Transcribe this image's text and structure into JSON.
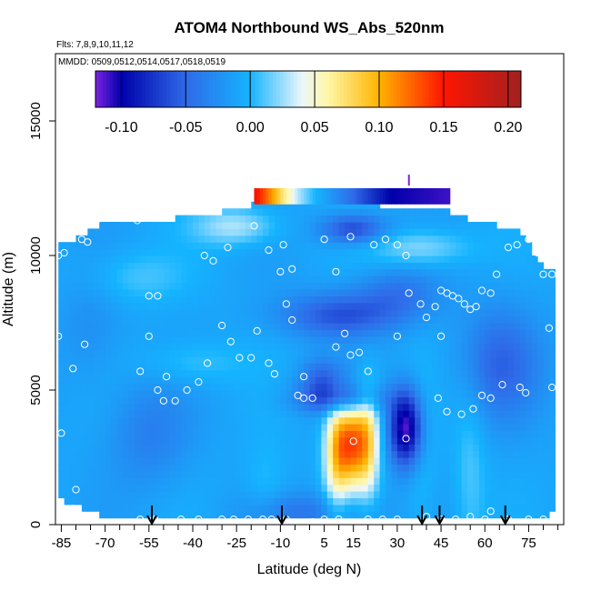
{
  "chart_data": {
    "type": "heatmap",
    "title": "ATOM4 Northbound WS_Abs_520nm",
    "flights_note": "Flts: 7,8,9,10,11,12",
    "dates_note": "MMDD: 0509,0512,0514,0517,0518,0519",
    "xlabel": "Latitude (deg N)",
    "ylabel": "Altitude (m)",
    "xlim": [
      -87,
      87
    ],
    "ylim": [
      0,
      17500
    ],
    "x_ticks": [
      -85,
      -70,
      -55,
      -40,
      -25,
      -10,
      5,
      15,
      30,
      45,
      60,
      75
    ],
    "y_ticks": [
      0,
      5000,
      10000,
      15000
    ],
    "colorbar": {
      "range": [
        -0.12,
        0.21
      ],
      "ticks": [
        -0.1,
        -0.05,
        0.0,
        0.05,
        0.1,
        0.15,
        0.2
      ],
      "tick_labels": [
        "-0.10",
        "-0.05",
        "0.00",
        "0.05",
        "0.10",
        "0.15",
        "0.20"
      ],
      "stops": [
        {
          "v": -0.12,
          "c": "#7b22e3"
        },
        {
          "v": -0.1,
          "c": "#0000aa"
        },
        {
          "v": -0.05,
          "c": "#2f6ae8"
        },
        {
          "v": 0.0,
          "c": "#15b4ff"
        },
        {
          "v": 0.04,
          "c": "#eaf6fb"
        },
        {
          "v": 0.06,
          "c": "#fff7a8"
        },
        {
          "v": 0.1,
          "c": "#ffb400"
        },
        {
          "v": 0.15,
          "c": "#ff1500"
        },
        {
          "v": 0.21,
          "c": "#a02020"
        }
      ]
    },
    "field": {
      "base_value": -0.01,
      "features": [
        {
          "lat": 14,
          "alt": 3000,
          "slat": 4.5,
          "salt": 1100,
          "v": 0.13
        },
        {
          "lat": 9,
          "alt": 2400,
          "slat": 3,
          "salt": 1600,
          "v": 0.05
        },
        {
          "lat": 20,
          "alt": 3200,
          "slat": 3,
          "salt": 1500,
          "v": 0.06
        },
        {
          "lat": 33,
          "alt": 3600,
          "slat": 4,
          "salt": 1000,
          "v": -0.11
        },
        {
          "lat": 10,
          "alt": 4700,
          "slat": 10,
          "salt": 400,
          "v": -0.06
        },
        {
          "lat": 10,
          "alt": 7800,
          "slat": 14,
          "salt": 600,
          "v": -0.05
        },
        {
          "lat": 5,
          "alt": 5500,
          "slat": 6,
          "salt": 500,
          "v": -0.04
        },
        {
          "lat": -55,
          "alt": 3400,
          "slat": 10,
          "salt": 1400,
          "v": -0.025
        },
        {
          "lat": -25,
          "alt": 11100,
          "slat": 10,
          "salt": 500,
          "v": 0.04
        },
        {
          "lat": 15,
          "alt": 11000,
          "slat": 8,
          "salt": 400,
          "v": -0.06
        },
        {
          "lat": 38,
          "alt": 10300,
          "slat": 12,
          "salt": 500,
          "v": 0.035
        },
        {
          "lat": -60,
          "alt": 9200,
          "slat": 12,
          "salt": 700,
          "v": 0.02
        },
        {
          "lat": -40,
          "alt": 6000,
          "slat": 12,
          "salt": 600,
          "v": 0.02
        },
        {
          "lat": 55,
          "alt": 2000,
          "slat": 4,
          "salt": 2500,
          "v": 0.02
        },
        {
          "lat": 38,
          "alt": 2000,
          "slat": 4,
          "salt": 2500,
          "v": 0.015
        },
        {
          "lat": -15,
          "alt": 1500,
          "slat": 5,
          "salt": 1200,
          "v": 0.015
        },
        {
          "lat": 65,
          "alt": 6000,
          "slat": 10,
          "salt": 1500,
          "v": -0.04
        },
        {
          "lat": 30,
          "alt": 8600,
          "slat": 10,
          "salt": 700,
          "v": -0.03
        },
        {
          "lat": -75,
          "alt": 7200,
          "slat": 8,
          "salt": 1500,
          "v": -0.015
        },
        {
          "lat": 0,
          "alt": 500,
          "slat": 15,
          "salt": 500,
          "v": -0.03
        }
      ],
      "top_band": {
        "alt_low": 11900,
        "alt_high": 12500,
        "lat_low": -19,
        "lat_high": 48,
        "stops": [
          {
            "lat": -19,
            "v": 0.16
          },
          {
            "lat": -14,
            "v": 0.12
          },
          {
            "lat": -9,
            "v": 0.07
          },
          {
            "lat": -4,
            "v": 0.03
          },
          {
            "lat": 2,
            "v": 0.0
          },
          {
            "lat": 10,
            "v": -0.03
          },
          {
            "lat": 20,
            "v": -0.07
          },
          {
            "lat": 28,
            "v": -0.1
          },
          {
            "lat": 48,
            "v": -0.11
          }
        ]
      },
      "coverage": [
        {
          "lat": -86,
          "top": 10500,
          "bottom": 1000
        },
        {
          "lat": -80,
          "top": 10600,
          "bottom": 700
        },
        {
          "lat": -70,
          "top": 11300,
          "bottom": 300
        },
        {
          "lat": -60,
          "top": 11300,
          "bottom": 150
        },
        {
          "lat": -48,
          "top": 11300,
          "bottom": 150
        },
        {
          "lat": -40,
          "top": 11500,
          "bottom": 150
        },
        {
          "lat": -30,
          "top": 11600,
          "bottom": 150
        },
        {
          "lat": -20,
          "top": 11900,
          "bottom": 150
        },
        {
          "lat": 0,
          "top": 11900,
          "bottom": 150
        },
        {
          "lat": 20,
          "top": 11900,
          "bottom": 150
        },
        {
          "lat": 45,
          "top": 11700,
          "bottom": 150
        },
        {
          "lat": 60,
          "top": 11200,
          "bottom": 150
        },
        {
          "lat": 70,
          "top": 11000,
          "bottom": 150
        },
        {
          "lat": 75,
          "top": 10500,
          "bottom": 150
        },
        {
          "lat": 80,
          "top": 9500,
          "bottom": 150
        },
        {
          "lat": 83,
          "top": 9500,
          "bottom": 500
        }
      ]
    },
    "sample_points": [
      [
        -86,
        10000
      ],
      [
        -84,
        10100
      ],
      [
        -78,
        10600
      ],
      [
        -76,
        10500
      ],
      [
        -73,
        11300
      ],
      [
        -70,
        11400
      ],
      [
        -66,
        11400
      ],
      [
        -62,
        11400
      ],
      [
        -59,
        11300
      ],
      [
        -86,
        7000
      ],
      [
        -81,
        5800
      ],
      [
        -77,
        6700
      ],
      [
        -85,
        3400
      ],
      [
        -80,
        1300
      ],
      [
        -55,
        8500
      ],
      [
        -52,
        8500
      ],
      [
        -55,
        7000
      ],
      [
        -58,
        5700
      ],
      [
        -49,
        5500
      ],
      [
        -52,
        5000
      ],
      [
        -50,
        4600
      ],
      [
        -46,
        4600
      ],
      [
        -42,
        5000
      ],
      [
        -38,
        5300
      ],
      [
        -35,
        6000
      ],
      [
        -33,
        9800
      ],
      [
        -36,
        10000
      ],
      [
        -28,
        10300
      ],
      [
        -30,
        7400
      ],
      [
        -27,
        6800
      ],
      [
        -24,
        6200
      ],
      [
        -20,
        6200
      ],
      [
        -18,
        7200
      ],
      [
        -14,
        6000
      ],
      [
        -12,
        5600
      ],
      [
        -19,
        11100
      ],
      [
        -14,
        10200
      ],
      [
        -9,
        10400
      ],
      [
        -10,
        9400
      ],
      [
        -6,
        9500
      ],
      [
        -8,
        8200
      ],
      [
        -6,
        7600
      ],
      [
        -2,
        5500
      ],
      [
        -4,
        4800
      ],
      [
        -2,
        4700
      ],
      [
        1,
        4700
      ],
      [
        5,
        10600
      ],
      [
        9,
        9400
      ],
      [
        14,
        10700
      ],
      [
        12,
        7100
      ],
      [
        9,
        6600
      ],
      [
        14,
        6300
      ],
      [
        17,
        6400
      ],
      [
        20,
        5700
      ],
      [
        22,
        10400
      ],
      [
        26,
        10600
      ],
      [
        30,
        10400
      ],
      [
        33,
        10000
      ],
      [
        34,
        8600
      ],
      [
        38,
        8200
      ],
      [
        40,
        7700
      ],
      [
        43,
        8100
      ],
      [
        45,
        8700
      ],
      [
        47,
        8600
      ],
      [
        49,
        8500
      ],
      [
        51,
        8400
      ],
      [
        53,
        8200
      ],
      [
        55,
        8000
      ],
      [
        57,
        8100
      ],
      [
        59,
        8700
      ],
      [
        62,
        8600
      ],
      [
        64,
        9300
      ],
      [
        68,
        10300
      ],
      [
        71,
        10400
      ],
      [
        75,
        10600
      ],
      [
        78,
        10100
      ],
      [
        80,
        9300
      ],
      [
        83,
        9300
      ],
      [
        82,
        7300
      ],
      [
        83,
        5100
      ],
      [
        74,
        4900
      ],
      [
        72,
        5100
      ],
      [
        66,
        5200
      ],
      [
        62,
        4700
      ],
      [
        59,
        4800
      ],
      [
        56,
        4300
      ],
      [
        52,
        4100
      ],
      [
        47,
        4200
      ],
      [
        44,
        4700
      ],
      [
        45,
        7000
      ],
      [
        30,
        7000
      ],
      [
        15,
        3100
      ],
      [
        33,
        3200
      ],
      [
        5,
        200
      ],
      [
        -8,
        200
      ],
      [
        -13,
        200
      ],
      [
        -21,
        200
      ],
      [
        -26,
        200
      ],
      [
        -38,
        200
      ],
      [
        -44,
        200
      ],
      [
        -53,
        200
      ],
      [
        -58,
        200
      ],
      [
        -81,
        600
      ],
      [
        -54,
        150
      ],
      [
        10,
        200
      ],
      [
        20,
        200
      ],
      [
        25,
        200
      ],
      [
        40,
        300
      ],
      [
        50,
        200
      ],
      [
        55,
        300
      ],
      [
        62,
        500
      ],
      [
        68,
        200
      ],
      [
        75,
        200
      ],
      [
        80,
        200
      ],
      [
        60,
        200
      ],
      [
        45,
        200
      ],
      [
        30,
        200
      ],
      [
        -30,
        200
      ],
      [
        -16,
        200
      ],
      [
        1,
        100
      ]
    ],
    "markers_alt_bottom": [
      {
        "lat": -54,
        "type": "arrow"
      },
      {
        "lat": -9.5,
        "type": "arrow"
      },
      {
        "lat": 38.5,
        "type": "arrow"
      },
      {
        "lat": 44.5,
        "type": "arrow"
      },
      {
        "lat": 67,
        "type": "arrow"
      }
    ],
    "top_tick_marker": {
      "lat": 34,
      "alt": 12800,
      "color": "#7b22e3"
    },
    "grid": false,
    "legend": "top"
  }
}
